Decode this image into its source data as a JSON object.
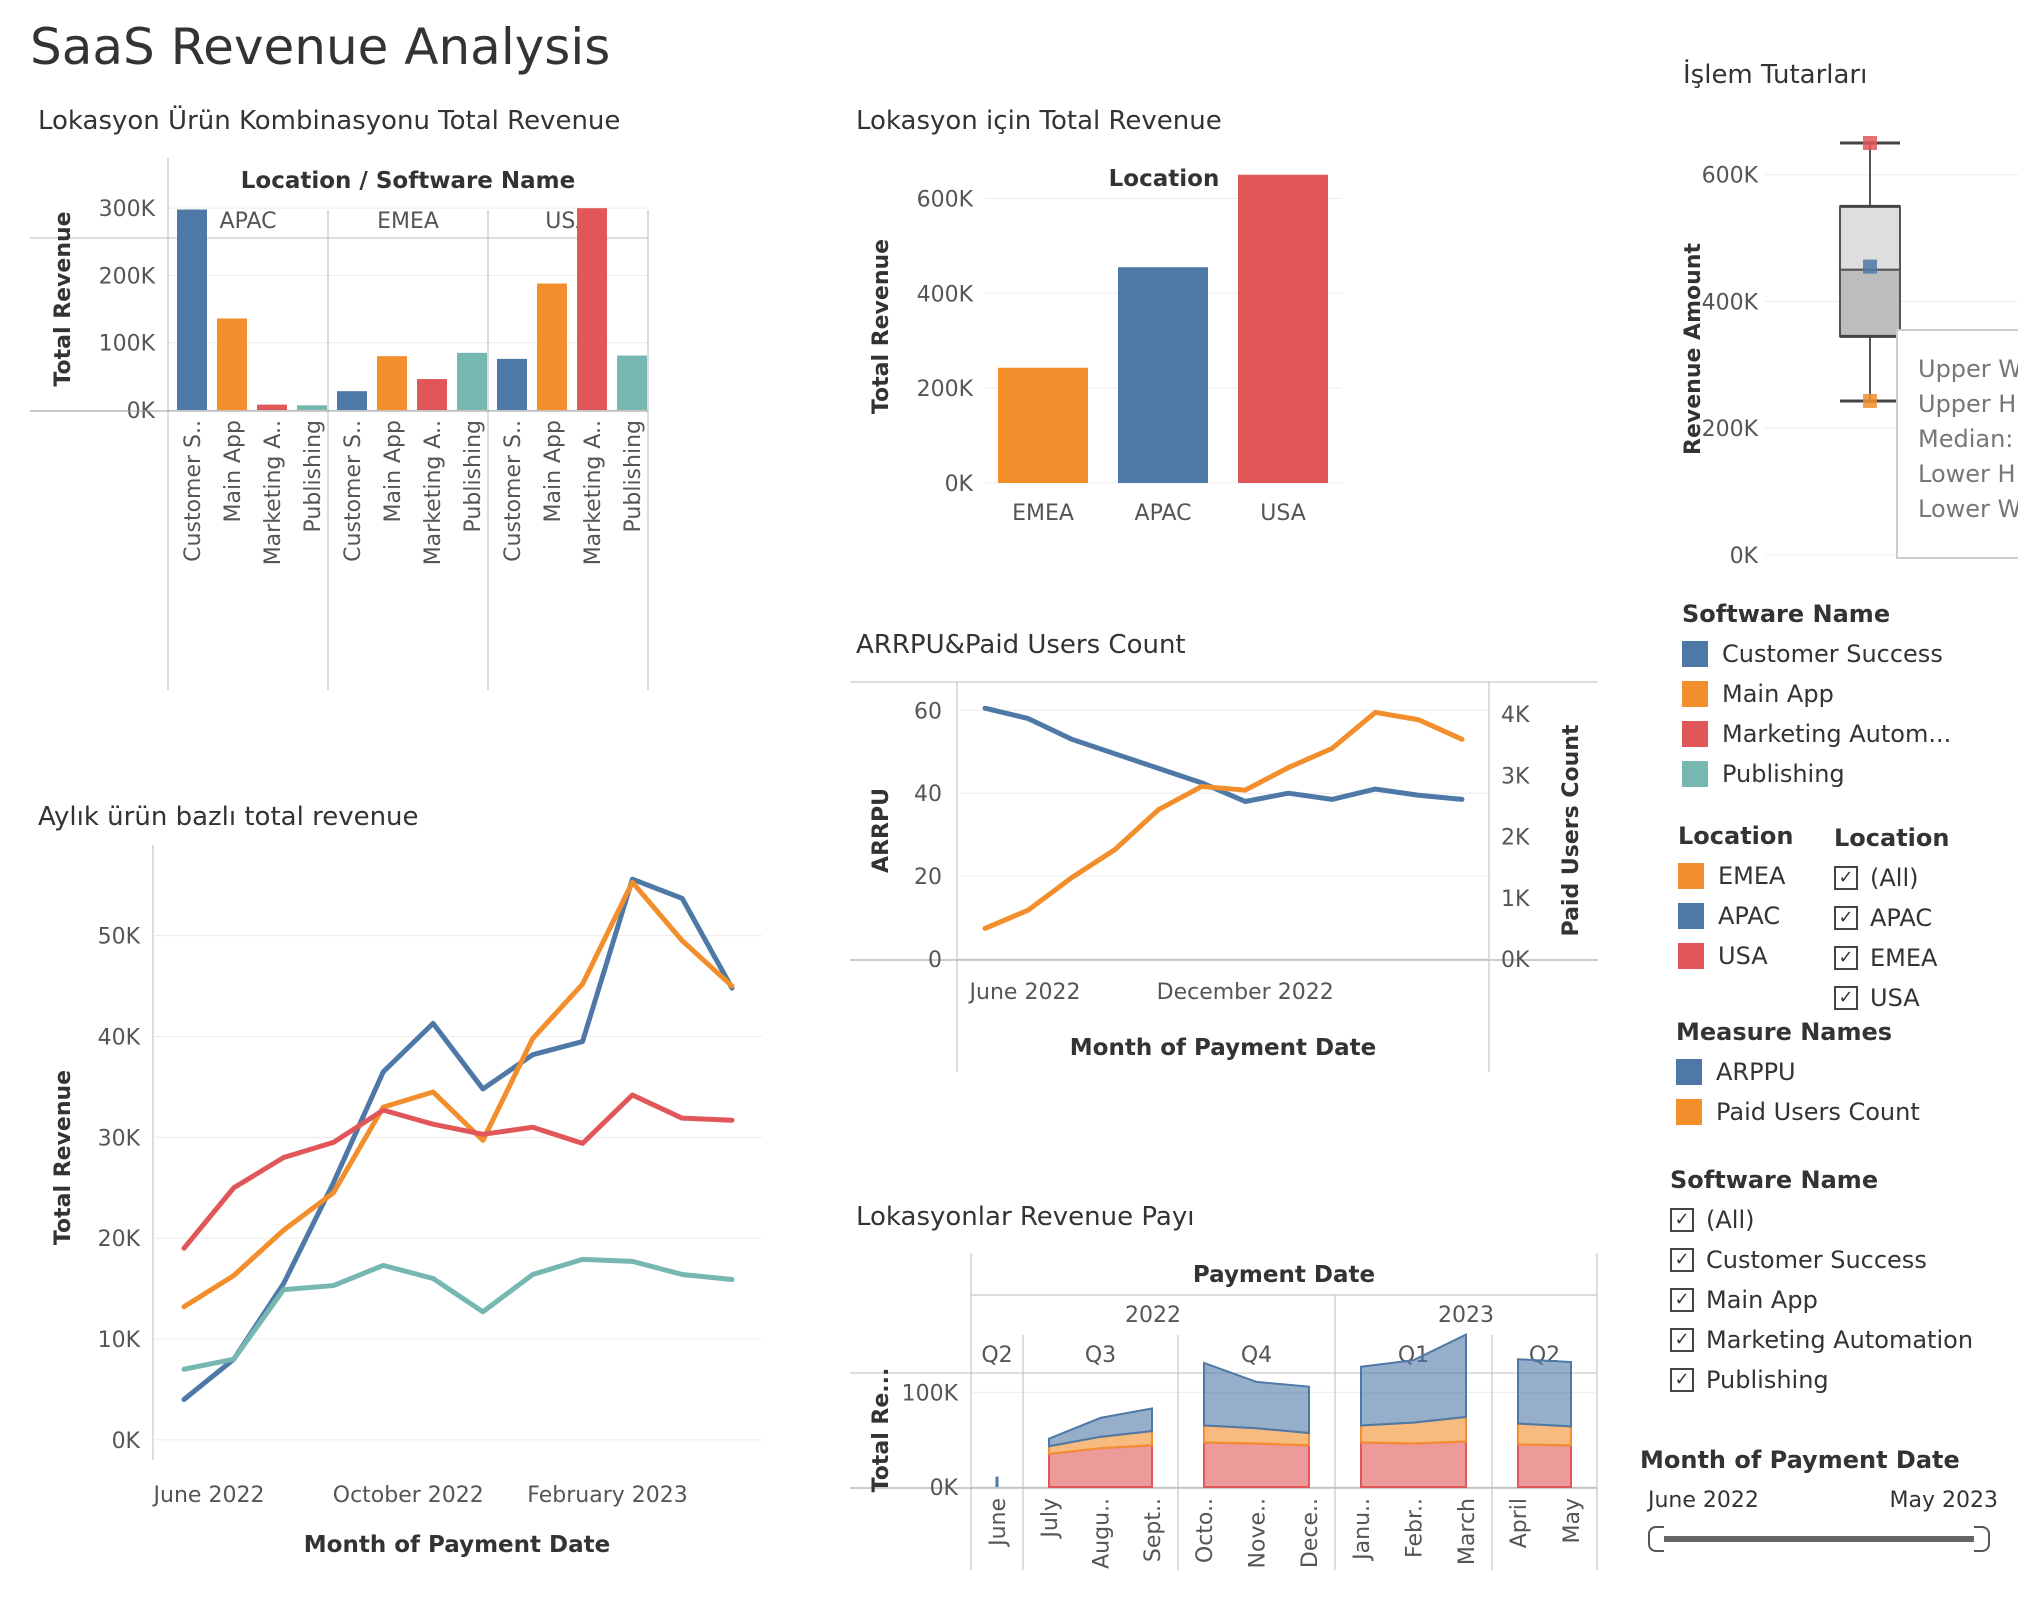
{
  "dashboard_title": "SaaS Revenue Analysis",
  "colors": {
    "customer_success": "#4e79a7",
    "main_app": "#f28e2b",
    "marketing": "#e15759",
    "publishing": "#76b7b2",
    "box_fill": "#d9d9d9",
    "box_inner": "#bababa",
    "tooltip_border": "#cccccc"
  },
  "chart_data": [
    {
      "id": "combo",
      "type": "bar",
      "title": "Lokasyon Ürün Kombinasyonu Total Revenue",
      "header": "Location / Software Name",
      "panels": [
        "APAC",
        "EMEA",
        "USA"
      ],
      "categories": [
        "Customer S..",
        "Main App",
        "Marketing A..",
        "Publishing"
      ],
      "series_colors": [
        "#4e79a7",
        "#f28e2b",
        "#e15759",
        "#76b7b2"
      ],
      "values": [
        [
          298000,
          136000,
          8000,
          7000
        ],
        [
          28000,
          80000,
          46000,
          85000
        ],
        [
          76000,
          188000,
          300000,
          81000
        ]
      ],
      "ylabel": "Total Revenue",
      "yticks": [
        0,
        100000,
        200000,
        300000
      ],
      "ytick_labels": [
        "0K",
        "100K",
        "200K",
        "300K"
      ],
      "ylim": [
        0,
        330000
      ]
    },
    {
      "id": "location",
      "type": "bar",
      "title": "Lokasyon için Total Revenue",
      "header": "Location",
      "categories": [
        "EMEA",
        "APAC",
        "USA"
      ],
      "values": [
        243000,
        455000,
        650000
      ],
      "colors": [
        "#f28e2b",
        "#4e79a7",
        "#e15759"
      ],
      "ylabel": "Total Revenue",
      "yticks": [
        0,
        200000,
        400000,
        600000
      ],
      "ytick_labels": [
        "0K",
        "200K",
        "400K",
        "600K"
      ],
      "ylim": [
        0,
        660000
      ]
    },
    {
      "id": "boxplot",
      "type": "box",
      "title": "İşlem Tutarları",
      "ylabel": "Revenue Amount",
      "yticks": [
        0,
        200000,
        400000,
        600000
      ],
      "ytick_labels": [
        "0K",
        "200K",
        "400K",
        "600K"
      ],
      "ylim": [
        0,
        650000
      ],
      "whisker_low": 243000,
      "q1": 345000,
      "median": 450000,
      "q3": 550000,
      "whisker_high": 650000,
      "points": [
        {
          "value": 650000,
          "color": "#e15759"
        },
        {
          "value": 455000,
          "color": "#4e79a7"
        },
        {
          "value": 243000,
          "color": "#f28e2b"
        }
      ],
      "tooltip_lines": [
        "Upper W",
        "Upper H",
        "Median:",
        "Lower H",
        "Lower W"
      ]
    },
    {
      "id": "arrpu",
      "type": "line",
      "title": "ARRPU&Paid Users Count",
      "x_months": [
        "2022-06",
        "2022-07",
        "2022-08",
        "2022-09",
        "2022-10",
        "2022-11",
        "2022-12",
        "2023-01",
        "2023-02",
        "2023-03",
        "2023-04",
        "2023-05"
      ],
      "xtick_labels": [
        "June 2022",
        "December 2022"
      ],
      "xtick_months": [
        "2022-06",
        "2022-12"
      ],
      "xlabel": "Month of Payment Date",
      "series": [
        {
          "name": "ARPPU",
          "axis": "left",
          "color": "#4e79a7",
          "values": [
            60.5,
            58,
            53,
            49.5,
            46,
            42.5,
            38,
            40,
            38.5,
            41,
            39.5,
            38.5
          ]
        },
        {
          "name": "Paid Users Count",
          "axis": "right",
          "color": "#f28e2b",
          "values": [
            500,
            800,
            1330,
            1790,
            2440,
            2820,
            2760,
            3130,
            3440,
            4030,
            3910,
            3590
          ]
        }
      ],
      "ylabel_left": "ARRPU",
      "ylabel_right": "Paid Users Count",
      "yticks_left": [
        0,
        20,
        40,
        60
      ],
      "ytick_labels_left": [
        "0",
        "20",
        "40",
        "60"
      ],
      "ylim_left": [
        0,
        62
      ],
      "yticks_right": [
        0,
        1000,
        2000,
        3000,
        4000
      ],
      "ytick_labels_right": [
        "0K",
        "1K",
        "2K",
        "3K",
        "4K"
      ],
      "ylim_right": [
        0,
        4200
      ]
    },
    {
      "id": "monthly",
      "type": "line",
      "title": "Aylık ürün bazlı total revenue",
      "x_months": [
        "2022-06",
        "2022-07",
        "2022-08",
        "2022-09",
        "2022-10",
        "2022-11",
        "2022-12",
        "2023-01",
        "2023-02",
        "2023-03",
        "2023-04",
        "2023-05"
      ],
      "xtick_labels": [
        "June 2022",
        "October 2022",
        "February 2023"
      ],
      "xtick_months": [
        "2022-06",
        "2022-10",
        "2023-02"
      ],
      "xlabel": "Month of Payment Date",
      "ylabel": "Total Revenue",
      "yticks": [
        0,
        10000,
        20000,
        30000,
        40000,
        50000
      ],
      "ytick_labels": [
        "0K",
        "10K",
        "20K",
        "30K",
        "40K",
        "50K"
      ],
      "ylim": [
        -2000,
        58000
      ],
      "series": [
        {
          "name": "Customer Success",
          "color": "#4e79a7",
          "values": [
            4000,
            8000,
            15500,
            25500,
            36500,
            41300,
            34800,
            38200,
            39500,
            55600,
            53700,
            44800
          ]
        },
        {
          "name": "Main App",
          "color": "#f28e2b",
          "values": [
            13200,
            16300,
            20800,
            24500,
            33000,
            34500,
            29700,
            39800,
            45200,
            55300,
            49500,
            45000
          ]
        },
        {
          "name": "Marketing Automation",
          "color": "#e15759",
          "values": [
            19000,
            25000,
            28000,
            29500,
            32700,
            31300,
            30300,
            31000,
            29400,
            34200,
            31900,
            31700
          ]
        },
        {
          "name": "Publishing",
          "color": "#76b7b2",
          "values": [
            7000,
            8000,
            14900,
            15300,
            17300,
            16000,
            12700,
            16400,
            17900,
            17700,
            16400,
            15900
          ]
        }
      ]
    },
    {
      "id": "share",
      "type": "area",
      "title": "Lokasyonlar Revenue Payı",
      "header": "Payment Date",
      "years": [
        {
          "label": "2022",
          "quarters": [
            0,
            1,
            2
          ]
        },
        {
          "label": "2023",
          "quarters": [
            3,
            4
          ]
        }
      ],
      "quarters": [
        {
          "label": "Q2",
          "months": [
            "June"
          ]
        },
        {
          "label": "Q3",
          "months": [
            "July",
            "Augu..",
            "Sept.."
          ]
        },
        {
          "label": "Q4",
          "months": [
            "Octo..",
            "Nove..",
            "Dece.."
          ]
        },
        {
          "label": "Q1",
          "months": [
            "Janu..",
            "Febr..",
            "March"
          ]
        },
        {
          "label": "Q2",
          "months": [
            "April",
            "May"
          ]
        }
      ],
      "ylabel": "Total Re...",
      "yticks": [
        0,
        100000
      ],
      "ytick_labels": [
        "0K",
        "100K"
      ],
      "ylim": [
        -38000,
        150000
      ],
      "stack_order": [
        "USA",
        "EMEA",
        "APAC"
      ],
      "series": [
        {
          "name": "USA",
          "color": "#e15759",
          "values": [
            4000,
            35000,
            41000,
            44000,
            47000,
            46000,
            44000,
            47000,
            46000,
            48000,
            45000,
            44000
          ]
        },
        {
          "name": "EMEA",
          "color": "#f28e2b",
          "values": [
            3000,
            8000,
            12000,
            15000,
            18000,
            16000,
            13000,
            18000,
            22000,
            26000,
            22000,
            20000
          ]
        },
        {
          "name": "APAC",
          "color": "#4e79a7",
          "values": [
            4000,
            8000,
            20000,
            24000,
            66000,
            49000,
            49000,
            62000,
            66000,
            87000,
            68000,
            68000
          ]
        }
      ]
    }
  ],
  "legends": {
    "software_name": {
      "title": "Software Name",
      "items": [
        {
          "label": "Customer Success",
          "color": "#4e79a7"
        },
        {
          "label": "Main App",
          "color": "#f28e2b"
        },
        {
          "label": "Marketing Autom...",
          "color": "#e15759"
        },
        {
          "label": "Publishing",
          "color": "#76b7b2"
        }
      ]
    },
    "location": {
      "title": "Location",
      "items": [
        {
          "label": "EMEA",
          "color": "#f28e2b"
        },
        {
          "label": "APAC",
          "color": "#4e79a7"
        },
        {
          "label": "USA",
          "color": "#e15759"
        }
      ]
    },
    "measure_names": {
      "title": "Measure Names",
      "items": [
        {
          "label": "ARPPU",
          "color": "#4e79a7"
        },
        {
          "label": "Paid Users Count",
          "color": "#f28e2b"
        }
      ]
    }
  },
  "filters": {
    "location": {
      "title": "Location",
      "items": [
        "(All)",
        "APAC",
        "EMEA",
        "USA"
      ]
    },
    "software_name": {
      "title": "Software Name",
      "items": [
        "(All)",
        "Customer Success",
        "Main App",
        "Marketing Automation",
        "Publishing"
      ]
    },
    "date_range": {
      "title": "Month of Payment Date",
      "start": "June 2022",
      "end": "May 2023"
    }
  }
}
